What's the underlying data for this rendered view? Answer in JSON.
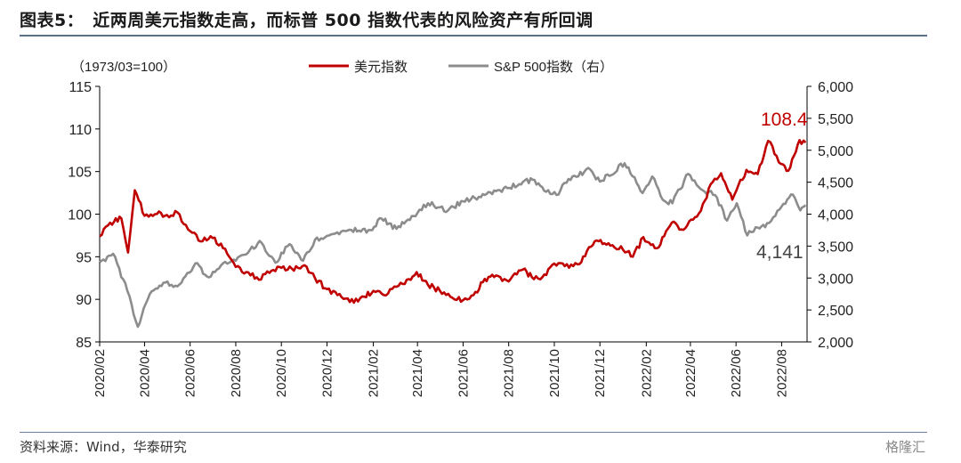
{
  "title": "图表5：　近两周美元指数走高，而标普 500 指数代表的风险资产有所回调",
  "source": "资料来源：Wind，华泰研究",
  "watermark": "格隆汇",
  "colors": {
    "usd": "#c00000",
    "spx": "#8c8c8c",
    "axis": "#000000"
  },
  "chart_data": {
    "type": "line",
    "left_unit_label": "（1973/03=100）",
    "legend_position": "top-center",
    "grid": false,
    "x_tick_labels": [
      "2020/02",
      "2020/04",
      "2020/06",
      "2020/08",
      "2020/10",
      "2020/12",
      "2021/02",
      "2021/04",
      "2021/06",
      "2021/08",
      "2021/10",
      "2021/12",
      "2022/02",
      "2022/04",
      "2022/06",
      "2022/08"
    ],
    "y_left": {
      "lim": [
        85,
        115
      ],
      "ticks": [
        "85",
        "90",
        "95",
        "100",
        "105",
        "110",
        "115"
      ]
    },
    "y_right": {
      "lim": [
        2000,
        6000
      ],
      "ticks": [
        "2,000",
        "2,500",
        "3,000",
        "3,500",
        "4,000",
        "4,500",
        "5,000",
        "5,500",
        "6,000"
      ]
    },
    "series": [
      {
        "name": "美元指数",
        "axis": "left",
        "color": "#c00000",
        "end_label": "108.4",
        "points": [
          [
            "2020-02-01",
            97.4
          ],
          [
            "2020-02-15",
            99.0
          ],
          [
            "2020-03-01",
            99.5
          ],
          [
            "2020-03-10",
            95.5
          ],
          [
            "2020-03-19",
            102.8
          ],
          [
            "2020-04-01",
            99.8
          ],
          [
            "2020-04-15",
            100.0
          ],
          [
            "2020-05-01",
            99.9
          ],
          [
            "2020-05-15",
            100.2
          ],
          [
            "2020-06-01",
            98.0
          ],
          [
            "2020-06-15",
            96.8
          ],
          [
            "2020-07-01",
            97.2
          ],
          [
            "2020-07-15",
            96.0
          ],
          [
            "2020-08-01",
            93.8
          ],
          [
            "2020-08-15",
            93.2
          ],
          [
            "2020-09-01",
            92.3
          ],
          [
            "2020-09-15",
            93.1
          ],
          [
            "2020-10-01",
            93.7
          ],
          [
            "2020-10-15",
            93.6
          ],
          [
            "2020-11-01",
            94.0
          ],
          [
            "2020-11-15",
            92.5
          ],
          [
            "2020-12-01",
            91.2
          ],
          [
            "2020-12-15",
            90.5
          ],
          [
            "2021-01-06",
            89.6
          ],
          [
            "2021-01-20",
            90.3
          ],
          [
            "2021-02-01",
            91.0
          ],
          [
            "2021-02-15",
            90.5
          ],
          [
            "2021-03-01",
            91.5
          ],
          [
            "2021-03-15",
            91.8
          ],
          [
            "2021-03-31",
            93.2
          ],
          [
            "2021-04-15",
            91.7
          ],
          [
            "2021-05-01",
            91.0
          ],
          [
            "2021-05-15",
            90.3
          ],
          [
            "2021-06-01",
            89.9
          ],
          [
            "2021-06-15",
            90.5
          ],
          [
            "2021-06-30",
            92.4
          ],
          [
            "2021-07-15",
            92.8
          ],
          [
            "2021-08-01",
            92.1
          ],
          [
            "2021-08-20",
            93.5
          ],
          [
            "2021-09-01",
            92.6
          ],
          [
            "2021-09-15",
            92.6
          ],
          [
            "2021-10-01",
            94.2
          ],
          [
            "2021-10-15",
            93.9
          ],
          [
            "2021-11-01",
            94.1
          ],
          [
            "2021-11-24",
            96.8
          ],
          [
            "2021-12-15",
            96.3
          ],
          [
            "2022-01-01",
            95.8
          ],
          [
            "2022-01-14",
            95.0
          ],
          [
            "2022-01-28",
            97.3
          ],
          [
            "2022-02-15",
            96.0
          ],
          [
            "2022-03-07",
            99.0
          ],
          [
            "2022-03-20",
            98.2
          ],
          [
            "2022-04-15",
            100.4
          ],
          [
            "2022-04-28",
            103.5
          ],
          [
            "2022-05-12",
            104.8
          ],
          [
            "2022-05-27",
            101.7
          ],
          [
            "2022-06-15",
            105.2
          ],
          [
            "2022-06-30",
            104.7
          ],
          [
            "2022-07-14",
            108.6
          ],
          [
            "2022-07-31",
            105.9
          ],
          [
            "2022-08-10",
            105.1
          ],
          [
            "2022-08-25",
            108.7
          ],
          [
            "2022-09-02",
            108.4
          ]
        ]
      },
      {
        "name": "S&P 500指数（右）",
        "axis": "right",
        "color": "#8c8c8c",
        "end_label": "4,141",
        "points": [
          [
            "2020-02-01",
            3250
          ],
          [
            "2020-02-19",
            3380
          ],
          [
            "2020-03-09",
            2800
          ],
          [
            "2020-03-23",
            2237
          ],
          [
            "2020-04-08",
            2750
          ],
          [
            "2020-04-29",
            2930
          ],
          [
            "2020-05-15",
            2870
          ],
          [
            "2020-06-08",
            3230
          ],
          [
            "2020-06-26",
            3010
          ],
          [
            "2020-07-15",
            3230
          ],
          [
            "2020-08-01",
            3270
          ],
          [
            "2020-08-15",
            3370
          ],
          [
            "2020-09-02",
            3580
          ],
          [
            "2020-09-23",
            3240
          ],
          [
            "2020-10-12",
            3530
          ],
          [
            "2020-10-30",
            3270
          ],
          [
            "2020-11-15",
            3600
          ],
          [
            "2020-12-01",
            3660
          ],
          [
            "2020-12-31",
            3756
          ],
          [
            "2021-01-28",
            3750
          ],
          [
            "2021-02-12",
            3930
          ],
          [
            "2021-03-04",
            3770
          ],
          [
            "2021-04-01",
            4020
          ],
          [
            "2021-04-15",
            4170
          ],
          [
            "2021-05-12",
            4060
          ],
          [
            "2021-06-01",
            4200
          ],
          [
            "2021-06-30",
            4300
          ],
          [
            "2021-07-15",
            4360
          ],
          [
            "2021-08-15",
            4470
          ],
          [
            "2021-09-02",
            4540
          ],
          [
            "2021-09-20",
            4350
          ],
          [
            "2021-10-04",
            4300
          ],
          [
            "2021-10-20",
            4550
          ],
          [
            "2021-11-18",
            4700
          ],
          [
            "2021-12-01",
            4510
          ],
          [
            "2022-01-03",
            4796
          ],
          [
            "2022-01-27",
            4330
          ],
          [
            "2022-02-09",
            4590
          ],
          [
            "2022-02-23",
            4225
          ],
          [
            "2022-03-08",
            4170
          ],
          [
            "2022-03-29",
            4630
          ],
          [
            "2022-04-15",
            4390
          ],
          [
            "2022-05-04",
            4300
          ],
          [
            "2022-05-20",
            3900
          ],
          [
            "2022-06-02",
            4170
          ],
          [
            "2022-06-16",
            3667
          ],
          [
            "2022-06-30",
            3790
          ],
          [
            "2022-07-15",
            3860
          ],
          [
            "2022-08-01",
            4120
          ],
          [
            "2022-08-16",
            4305
          ],
          [
            "2022-08-26",
            4058
          ],
          [
            "2022-09-02",
            4141
          ]
        ]
      }
    ]
  }
}
